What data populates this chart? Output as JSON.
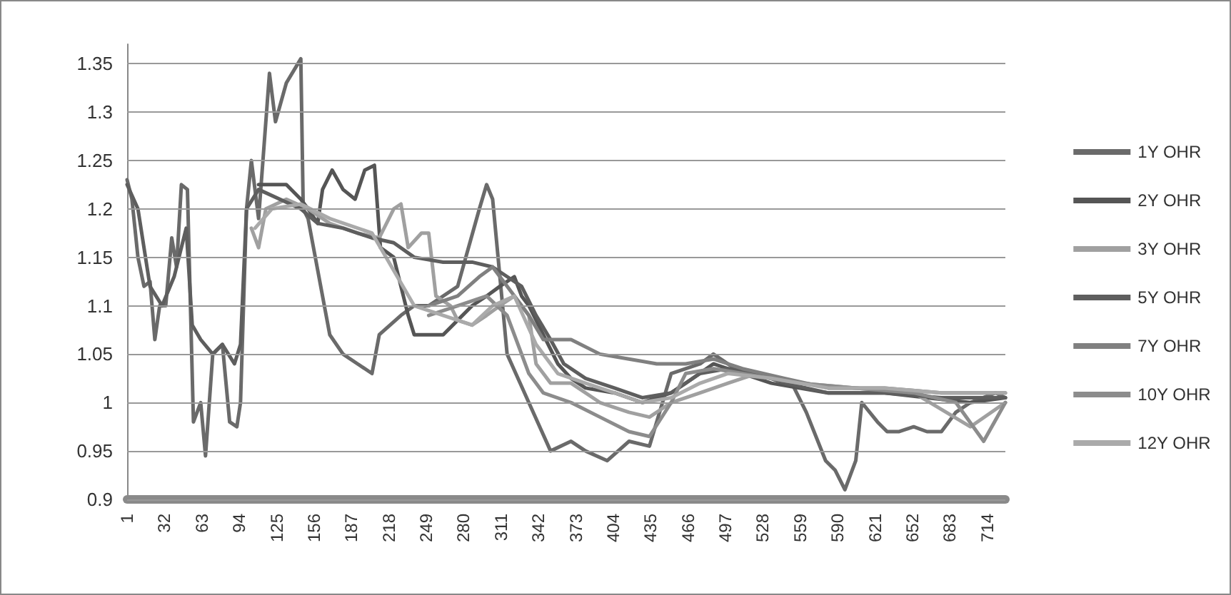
{
  "chart_data": {
    "type": "line",
    "xlim": [
      1,
      729
    ],
    "xticks": [
      1,
      32,
      63,
      94,
      125,
      156,
      187,
      218,
      249,
      280,
      311,
      342,
      373,
      404,
      435,
      466,
      497,
      528,
      559,
      590,
      621,
      652,
      683,
      714
    ],
    "ylim": [
      0.9,
      1.37
    ],
    "yticks": [
      0.9,
      0.95,
      1,
      1.05,
      1.1,
      1.15,
      1.2,
      1.25,
      1.3,
      1.35
    ],
    "grid": "y",
    "legend": "right",
    "marker": "none",
    "line_style": "solid",
    "series": [
      {
        "name": "1Y OHR",
        "color": "#6a6a6a",
        "x": [
          1,
          5,
          10,
          15,
          20,
          24,
          28,
          33,
          38,
          42,
          46,
          51,
          56,
          62,
          66,
          72,
          80,
          86,
          92,
          95,
          100,
          104,
          110,
          119,
          124,
          133,
          145,
          147,
          151,
          169,
          180,
          192,
          204,
          210,
          228,
          239,
          251,
          275,
          293,
          299,
          304,
          316,
          334,
          352,
          369,
          381,
          399,
          417,
          434,
          452,
          476,
          487,
          511,
          535,
          552,
          564,
          580,
          588,
          596,
          605,
          610,
          623,
          631,
          641,
          653,
          664,
          676,
          688,
          700,
          721,
          729
        ],
        "values": [
          1.23,
          1.21,
          1.15,
          1.12,
          1.125,
          1.065,
          1.1,
          1.1,
          1.17,
          1.14,
          1.225,
          1.22,
          0.98,
          1.0,
          0.945,
          1.05,
          1.06,
          0.98,
          0.975,
          1.0,
          1.2,
          1.25,
          1.19,
          1.34,
          1.29,
          1.33,
          1.355,
          1.2,
          1.19,
          1.07,
          1.05,
          1.04,
          1.03,
          1.07,
          1.09,
          1.1,
          1.1,
          1.12,
          1.2,
          1.225,
          1.21,
          1.05,
          1.0,
          0.95,
          0.96,
          0.95,
          0.94,
          0.96,
          0.955,
          1.03,
          1.04,
          1.05,
          1.03,
          1.025,
          1.02,
          0.99,
          0.94,
          0.93,
          0.91,
          0.94,
          1.0,
          0.98,
          0.97,
          0.97,
          0.975,
          0.97,
          0.97,
          0.99,
          1.0,
          1.01,
          1.005
        ]
      },
      {
        "name": "2Y OHR",
        "color": "#555555",
        "x": [
          110,
          133,
          145,
          151,
          159,
          163,
          171,
          180,
          190,
          198,
          206,
          211,
          222,
          234,
          239,
          251,
          263,
          275,
          287,
          299,
          310,
          322,
          328,
          334,
          346,
          358,
          369,
          381,
          405,
          428,
          452,
          464,
          487,
          511,
          535,
          558,
          582,
          605,
          629,
          664,
          700,
          729
        ],
        "values": [
          1.225,
          1.225,
          1.21,
          1.2,
          1.185,
          1.22,
          1.24,
          1.22,
          1.21,
          1.24,
          1.245,
          1.16,
          1.15,
          1.09,
          1.07,
          1.07,
          1.07,
          1.085,
          1.1,
          1.11,
          1.12,
          1.13,
          1.11,
          1.1,
          1.07,
          1.04,
          1.025,
          1.015,
          1.01,
          1.0,
          1.01,
          1.02,
          1.04,
          1.03,
          1.02,
          1.015,
          1.01,
          1.01,
          1.01,
          1.005,
          1.0,
          1.005
        ]
      },
      {
        "name": "3Y OHR",
        "color": "#a0a0a0",
        "x": [
          104,
          110,
          116,
          133,
          151,
          169,
          192,
          210,
          222,
          228,
          234,
          245,
          251,
          257,
          269,
          275,
          287,
          299,
          310,
          322,
          334,
          340,
          352,
          369,
          393,
          417,
          434,
          452,
          476,
          499,
          523,
          558,
          605,
          653,
          700,
          729
        ],
        "values": [
          1.18,
          1.16,
          1.2,
          1.21,
          1.2,
          1.185,
          1.175,
          1.17,
          1.2,
          1.205,
          1.16,
          1.175,
          1.175,
          1.11,
          1.1,
          1.085,
          1.08,
          1.09,
          1.1,
          1.11,
          1.09,
          1.04,
          1.02,
          1.02,
          1.0,
          0.99,
          0.985,
          1.0,
          1.01,
          1.02,
          1.03,
          1.02,
          1.015,
          1.01,
          0.975,
          1.0
        ]
      },
      {
        "name": "5Y OHR",
        "color": "#5e5e5e",
        "x": [
          1,
          10,
          20,
          30,
          40,
          50,
          55,
          62,
          72,
          80,
          90,
          95,
          100,
          110,
          145,
          159,
          180,
          204,
          222,
          239,
          263,
          287,
          304,
          316,
          328,
          340,
          352,
          363,
          381,
          405,
          428,
          452,
          476,
          499,
          523,
          546,
          582,
          629,
          676,
          729
        ],
        "values": [
          1.225,
          1.2,
          1.12,
          1.1,
          1.13,
          1.18,
          1.08,
          1.065,
          1.05,
          1.06,
          1.04,
          1.06,
          1.2,
          1.22,
          1.2,
          1.185,
          1.18,
          1.17,
          1.165,
          1.15,
          1.145,
          1.145,
          1.14,
          1.13,
          1.12,
          1.09,
          1.065,
          1.04,
          1.025,
          1.015,
          1.005,
          1.01,
          1.03,
          1.035,
          1.03,
          1.02,
          1.01,
          1.01,
          1.005,
          1.005
        ]
      },
      {
        "name": "7Y OHR",
        "color": "#808080",
        "x": [
          251,
          275,
          293,
          304,
          316,
          334,
          346,
          369,
          393,
          417,
          440,
          464,
          487,
          511,
          546,
          582,
          629,
          676,
          729
        ],
        "values": [
          1.1,
          1.11,
          1.13,
          1.14,
          1.12,
          1.09,
          1.065,
          1.065,
          1.05,
          1.045,
          1.04,
          1.04,
          1.045,
          1.035,
          1.025,
          1.015,
          1.015,
          1.01,
          1.01
        ]
      },
      {
        "name": "10Y OHR",
        "color": "#8c8c8c",
        "x": [
          251,
          275,
          299,
          316,
          334,
          346,
          369,
          393,
          417,
          434,
          452,
          464,
          487,
          511,
          558,
          605,
          653,
          688,
          711,
          729
        ],
        "values": [
          1.09,
          1.1,
          1.11,
          1.09,
          1.03,
          1.01,
          1.0,
          0.985,
          0.97,
          0.965,
          1.0,
          1.03,
          1.035,
          1.03,
          1.02,
          1.015,
          1.01,
          1.0,
          0.96,
          1.0
        ]
      },
      {
        "name": "12Y OHR",
        "color": "#aaaaaa",
        "x": [
          107,
          121,
          145,
          169,
          204,
          239,
          263,
          287,
          304,
          322,
          340,
          358,
          381,
          405,
          428,
          452,
          476,
          499,
          535,
          582,
          629,
          676,
          729
        ],
        "values": [
          1.18,
          1.2,
          1.205,
          1.19,
          1.175,
          1.1,
          1.09,
          1.08,
          1.1,
          1.11,
          1.06,
          1.03,
          1.02,
          1.01,
          1.0,
          1.005,
          1.02,
          1.03,
          1.025,
          1.015,
          1.015,
          1.01,
          1.01
        ]
      }
    ]
  }
}
